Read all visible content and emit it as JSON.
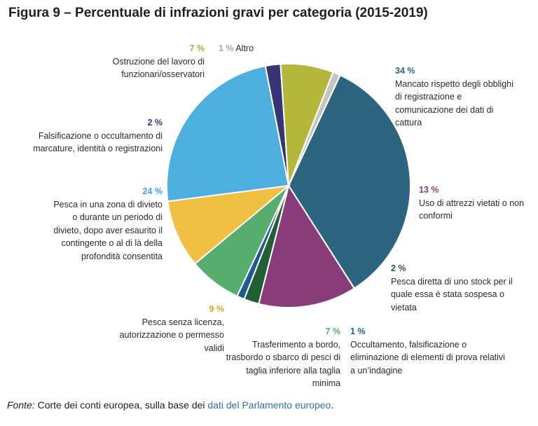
{
  "figure": {
    "title": "Figura 9 – Percentuale di infrazioni gravi per categoria (2015-2019)",
    "source_prefix": "Fonte:",
    "source_text": " Corte dei conti europea, sulla base dei ",
    "source_link": "dati del Parlamento europeo",
    "source_suffix": "."
  },
  "chart_data": {
    "type": "pie",
    "title": "Figura 9 – Percentuale di infrazioni gravi per categoria (2015-2019)",
    "start_angle_deg": 25,
    "direction": "clockwise",
    "slices": [
      {
        "id": "registrazione",
        "pct_label": "34 %",
        "value": 34,
        "color": "#2d6580",
        "label": "Mancato rispetto degli obblighi di registrazione e comunicazione dei dati di cattura"
      },
      {
        "id": "attrezzi",
        "pct_label": "13 %",
        "value": 13,
        "color": "#883d7a",
        "label": "Uso di attrezzi vietati o non conformi"
      },
      {
        "id": "stock",
        "pct_label": "2 %",
        "value": 2,
        "color": "#215f34",
        "label": "Pesca diretta di uno stock per il quale essa è stata sospesa o vietata"
      },
      {
        "id": "indagine",
        "pct_label": "1 %",
        "value": 1,
        "color": "#1f5a8c",
        "label": "Occultamento, falsificazione o eliminazione di elementi di prova relativi a un’indagine"
      },
      {
        "id": "trasbordo",
        "pct_label": "7 %",
        "value": 7,
        "color": "#56ad6e",
        "label": "Trasferimento a bordo, trasbordo o sbarco di pesci di taglia inferiore alla taglia minima"
      },
      {
        "id": "licenza",
        "pct_label": "9 %",
        "value": 9,
        "color": "#f1bf42",
        "label": "Pesca senza licenza, autorizzazione o permesso validi"
      },
      {
        "id": "divieto",
        "pct_label": "24 %",
        "value": 24,
        "color": "#4dafe0",
        "label": "Pesca in una zona di divieto o durante un periodo di divieto, dopo aver esaurito il contingente o al di là della profondità consentita"
      },
      {
        "id": "marcature",
        "pct_label": "2 %",
        "value": 2,
        "color": "#373576",
        "label": "Falsificazione o occultamento di marcature, identità o registrazioni"
      },
      {
        "id": "ostruzione",
        "pct_label": "7 %",
        "value": 7,
        "color": "#b4b73b",
        "label": "Ostruzione del lavoro di funzionari/osservatori"
      },
      {
        "id": "altro",
        "pct_label": "1 %",
        "value": 1,
        "color": "#c5c5c5",
        "label": "Altro"
      }
    ]
  }
}
